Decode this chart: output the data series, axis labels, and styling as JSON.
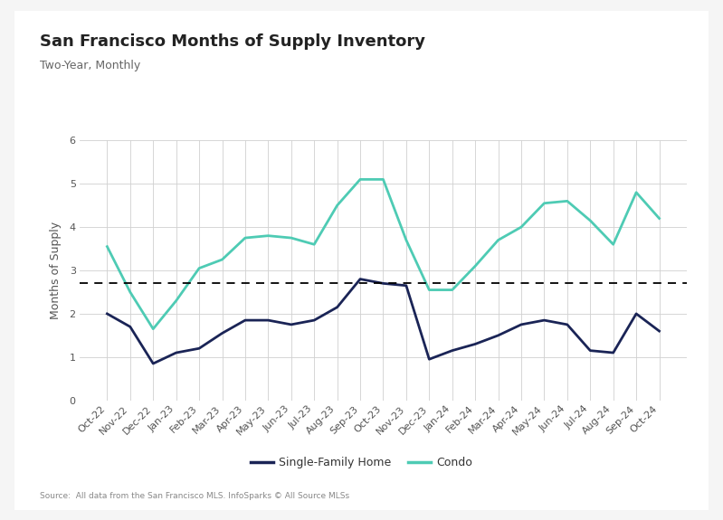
{
  "title": "San Francisco Months of Supply Inventory",
  "subtitle": "Two-Year, Monthly",
  "ylabel": "Months of Supply",
  "source": "Source:  All data from the San Francisco MLS. InfoSparks © All Source MLSs",
  "dashed_line_y": 2.7,
  "ylim": [
    0,
    6
  ],
  "yticks": [
    0,
    1,
    2,
    3,
    4,
    5,
    6
  ],
  "labels": [
    "Oct-22",
    "Nov-22",
    "Dec-22",
    "Jan-23",
    "Feb-23",
    "Mar-23",
    "Apr-23",
    "May-23",
    "Jun-23",
    "Jul-23",
    "Aug-23",
    "Sep-23",
    "Oct-23",
    "Nov-23",
    "Dec-23",
    "Jan-24",
    "Feb-24",
    "Mar-24",
    "Apr-24",
    "May-24",
    "Jun-24",
    "Jul-24",
    "Aug-24",
    "Sep-24",
    "Oct-24"
  ],
  "sfh_values": [
    2.0,
    1.7,
    0.85,
    1.1,
    1.2,
    1.55,
    1.85,
    1.85,
    1.75,
    1.85,
    2.15,
    2.8,
    2.7,
    2.65,
    0.95,
    1.15,
    1.3,
    1.5,
    1.75,
    1.85,
    1.75,
    1.15,
    1.1,
    2.0,
    1.6
  ],
  "condo_values": [
    3.55,
    2.5,
    1.65,
    2.3,
    3.05,
    3.25,
    3.75,
    3.8,
    3.75,
    3.6,
    4.5,
    5.1,
    5.1,
    3.7,
    2.55,
    2.55,
    3.1,
    3.7,
    4.0,
    4.55,
    4.6,
    4.15,
    3.6,
    4.8,
    4.2
  ],
  "sfh_color": "#1a2456",
  "condo_color": "#4ecbb4",
  "sfh_label": "Single-Family Home",
  "condo_label": "Condo",
  "line_width": 2.0,
  "background_color": "#ffffff",
  "outer_bg_color": "#f5f5f5",
  "grid_color": "#d0d0d0",
  "title_fontsize": 13,
  "subtitle_fontsize": 9,
  "axis_fontsize": 8,
  "legend_fontsize": 9
}
